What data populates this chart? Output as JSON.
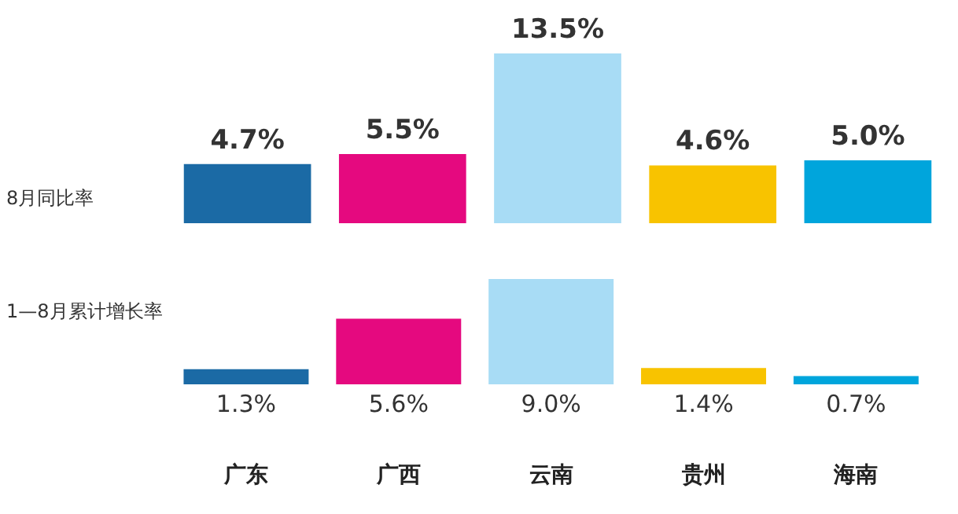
{
  "chart_data": [
    {
      "type": "bar",
      "ylabel": "8月同比率",
      "categories": [
        null,
        null,
        null,
        null,
        null
      ],
      "values": [
        4.7,
        5.5,
        13.5,
        4.6,
        5.0
      ],
      "colors": [
        "#1b6aa5",
        "#e5097f",
        "#a8dcf5",
        "#f8c300",
        "#00a5dc"
      ],
      "value_labels": [
        "4.7%",
        "5.5%",
        "13.5%",
        "4.6%",
        "5.0%"
      ],
      "tick_labels": false,
      "grid": false,
      "legend": false
    },
    {
      "type": "bar",
      "ylabel": "1—8月累计增长率",
      "categories": [
        "广东",
        "广西",
        "云南",
        "贵州",
        "海南"
      ],
      "values": [
        1.3,
        5.6,
        9.0,
        1.4,
        0.7
      ],
      "colors": [
        "#1b6aa5",
        "#e5097f",
        "#a8dcf5",
        "#f8c300",
        "#00a5dc"
      ],
      "value_labels": [
        "1.3%",
        "5.6%",
        "9.0%",
        "1.4%",
        "0.7%"
      ],
      "tick_labels": "x",
      "grid": false,
      "legend": false
    }
  ]
}
